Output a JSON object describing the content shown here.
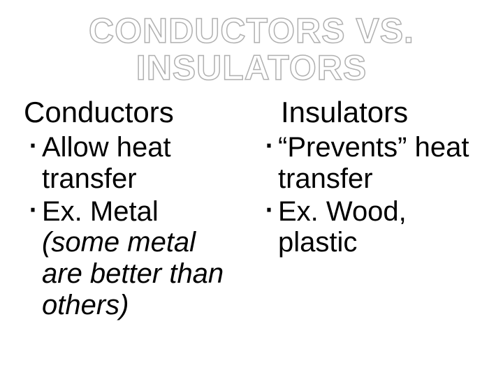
{
  "slide": {
    "title_line1": "CONDUCTORS VS.",
    "title_line2": "INSULATORS",
    "title_color": "#ffffff",
    "title_stroke": "#b0b0b0",
    "title_fontsize": 50,
    "background_color": "#ffffff",
    "body_color": "#000000",
    "body_fontsize": 40,
    "columns": {
      "left": {
        "heading": "Conductors",
        "items": [
          {
            "text": "Allow heat transfer",
            "italic_tail": null
          },
          {
            "text": "Ex. Metal",
            "italic_tail": "(some metal are better than others)"
          }
        ]
      },
      "right": {
        "heading": "Insulators",
        "items": [
          {
            "text": "“Prevents” heat transfer",
            "italic_tail": null
          },
          {
            "text": "Ex. Wood, plastic",
            "italic_tail": null
          }
        ]
      }
    }
  }
}
